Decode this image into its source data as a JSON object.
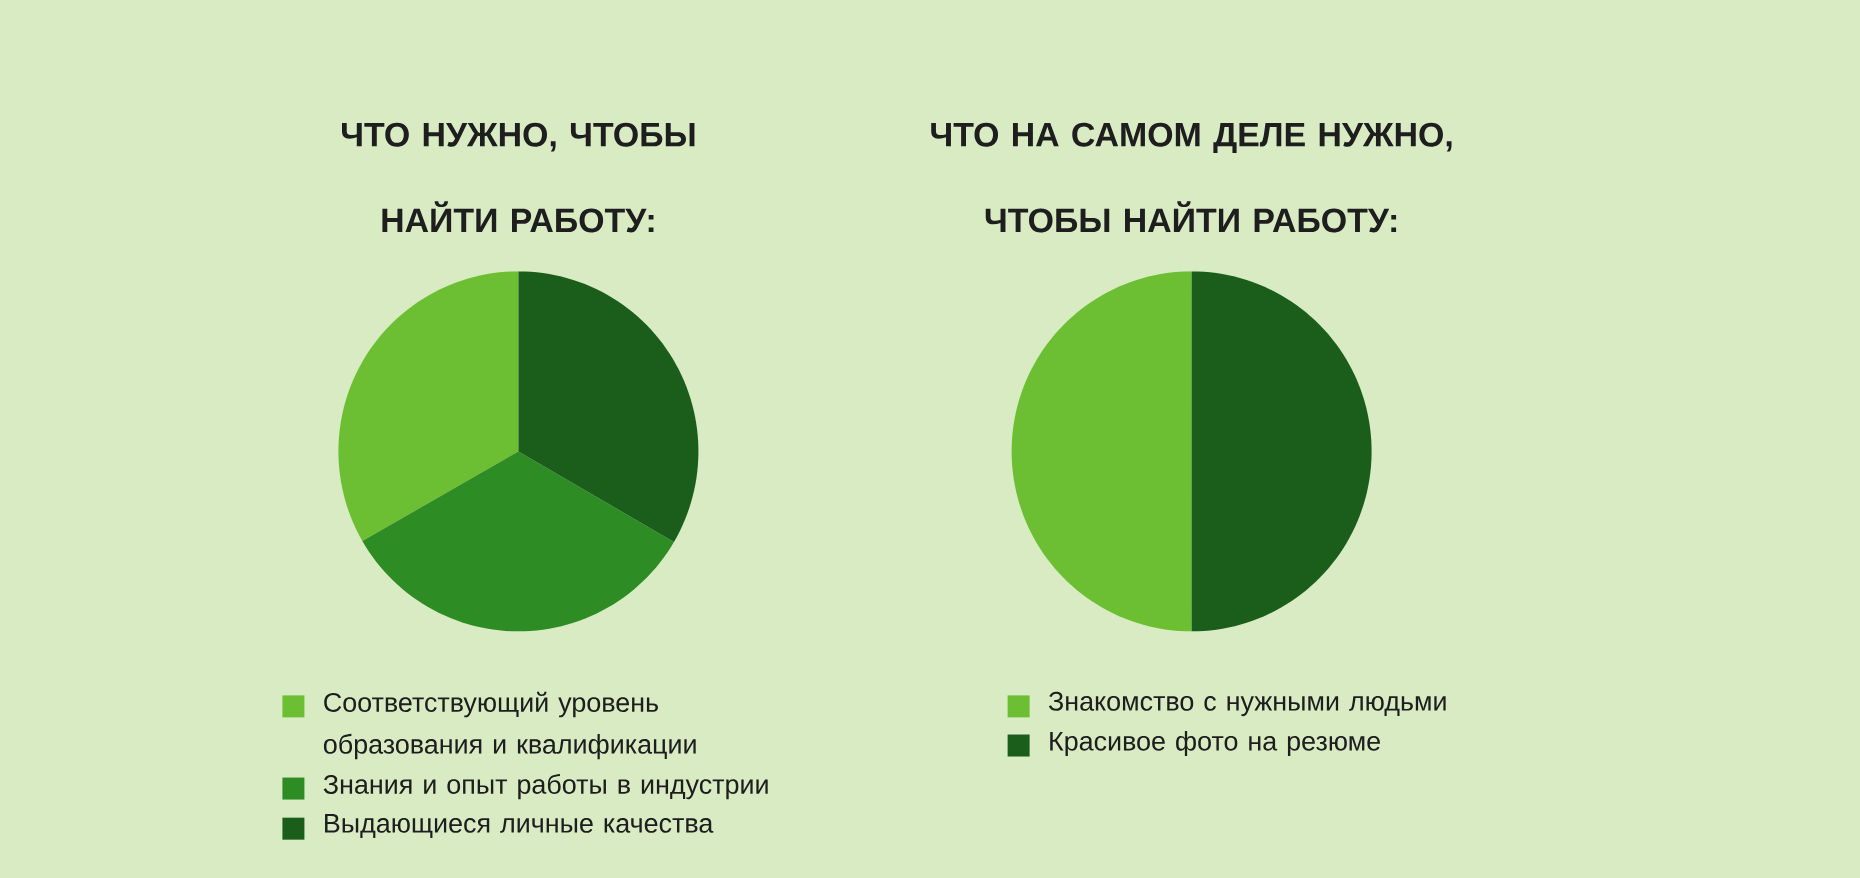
{
  "chart_data": [
    {
      "type": "pie",
      "title": "ЧТО НУЖНО, ЧТОБЫ НАЙТИ РАБОТУ:",
      "categories": [
        "Соответствующий уровень образования и квалификации",
        "Знания и опыт работы в индустрии",
        "Выдающиеся личные качества"
      ],
      "values": [
        33.3,
        33.3,
        33.4
      ],
      "colors": [
        "#6cbf32",
        "#2d8c24",
        "#1b5e1b"
      ],
      "legend": "bottom"
    },
    {
      "type": "pie",
      "title": "ЧТО НА САМОМ ДЕЛЕ НУЖНО, ЧТОБЫ НАЙТИ РАБОТУ:",
      "categories": [
        "Знакомство с нужными людьми",
        "Красивое фото на резюме"
      ],
      "values": [
        50,
        50
      ],
      "colors": [
        "#6cbf32",
        "#1b5e1b"
      ],
      "legend": "bottom"
    }
  ]
}
